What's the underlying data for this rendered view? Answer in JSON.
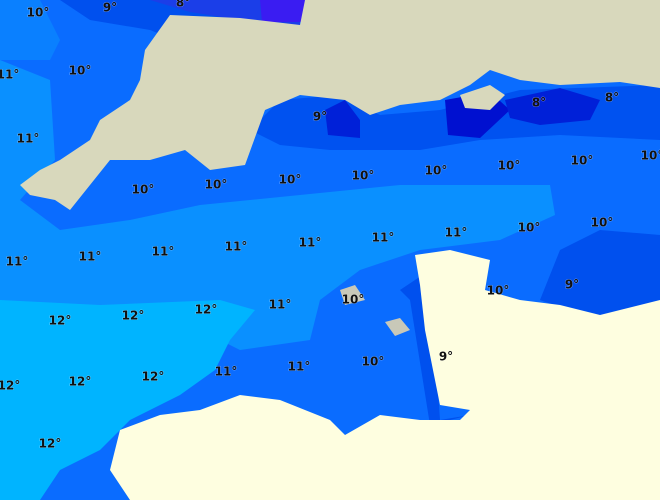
{
  "labels": [
    "10°",
    "9°",
    "8°",
    "11°",
    "10°",
    "9°",
    "8°",
    "8°",
    "11°",
    "10°",
    "10°",
    "10°",
    "10°",
    "10°",
    "10°",
    "10°",
    "10°",
    "10°",
    "10°",
    "11°",
    "11°",
    "11°",
    "11°",
    "11°",
    "11°",
    "11°",
    "10°",
    "9°",
    "12°",
    "12°",
    "12°",
    "11°",
    "10°",
    "12°",
    "12°",
    "12°",
    "11°",
    "11°",
    "10°",
    "9°",
    "12°"
  ]
}
